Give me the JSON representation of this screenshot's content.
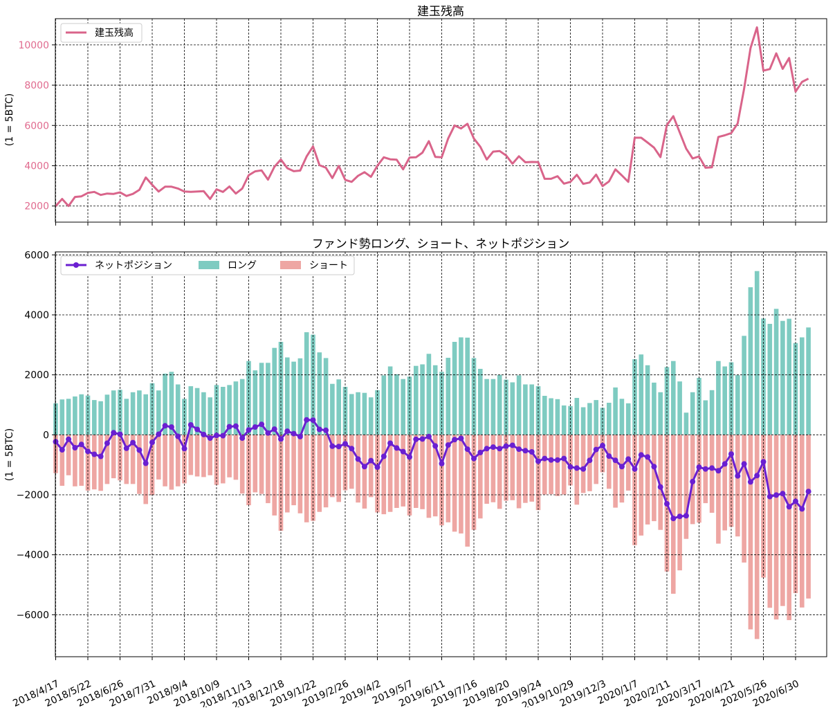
{
  "colors": {
    "oi_line": "#d9648a",
    "oi_tick": "#e06a8e",
    "long_bar": "#7ecbc1",
    "short_bar": "#eea6a3",
    "net_line": "#6a1fd1",
    "grid": "#000000",
    "axis_text": "#000000"
  },
  "x_tick_labels": [
    "2018/4/17",
    "2018/5/22",
    "2018/6/26",
    "2018/7/31",
    "2018/9/4",
    "2018/10/9",
    "2018/11/13",
    "2018/12/18",
    "2019/1/22",
    "2019/2/26",
    "2019/4/2",
    "2019/5/7",
    "2019/6/11",
    "2019/7/16",
    "2019/8/20",
    "2019/9/24",
    "2019/10/29",
    "2019/12/3",
    "2020/1/7",
    "2020/2/11",
    "2020/3/17",
    "2020/4/21",
    "2020/5/26",
    "2020/6/30"
  ],
  "chart_data": [
    {
      "type": "line",
      "title": "建玉残高",
      "ylabel": "(1 = 5BTC)",
      "xlabel": "",
      "ylim": [
        1200,
        11300
      ],
      "yticks": [
        2000,
        4000,
        6000,
        8000,
        10000
      ],
      "grid": true,
      "legend": {
        "position": "top-left",
        "entries": [
          "建玉残高"
        ]
      },
      "series": [
        {
          "name": "建玉残高",
          "values": [
            2000,
            2350,
            2000,
            2450,
            2480,
            2650,
            2700,
            2550,
            2620,
            2600,
            2680,
            2500,
            2600,
            2800,
            3420,
            3050,
            2720,
            2960,
            2960,
            2870,
            2720,
            2700,
            2720,
            2740,
            2350,
            2830,
            2700,
            2970,
            2620,
            2870,
            3530,
            3720,
            3770,
            3310,
            3950,
            4310,
            3880,
            3730,
            3760,
            4460,
            4960,
            4030,
            3900,
            3390,
            3990,
            3300,
            3200,
            3500,
            3680,
            3450,
            4000,
            4420,
            4320,
            4300,
            3820,
            4410,
            4420,
            4650,
            5220,
            4440,
            4420,
            5350,
            6000,
            5850,
            6080,
            5350,
            4940,
            4310,
            4700,
            4730,
            4510,
            4100,
            4470,
            4170,
            4190,
            4180,
            3350,
            3350,
            3480,
            3110,
            3200,
            3550,
            3100,
            3170,
            3560,
            2990,
            3220,
            3820,
            3520,
            3200,
            5390,
            5390,
            5150,
            4900,
            4430,
            6020,
            6460,
            5650,
            4850,
            4360,
            4460,
            3900,
            3920,
            5430,
            5510,
            5620,
            6100,
            7820,
            9840,
            10870,
            8720,
            8800,
            9580,
            8810,
            9350,
            7680,
            8160,
            8320
          ]
        }
      ]
    },
    {
      "type": "bar",
      "title": "ファンド勢ロング、ショート、ネットポジション",
      "ylabel": "(1 = 5BTC)",
      "xlabel": "",
      "ylim": [
        -7400,
        6100
      ],
      "yticks": [
        -6000,
        -4000,
        -2000,
        0,
        2000,
        4000,
        6000
      ],
      "grid": true,
      "legend": {
        "position": "top-left",
        "entries": [
          "ネットポジション",
          "ロング",
          "ショート"
        ]
      },
      "series": [
        {
          "name": "ロング",
          "values": [
            1050,
            1180,
            1200,
            1280,
            1350,
            1310,
            1160,
            1120,
            1340,
            1480,
            1500,
            1200,
            1420,
            1480,
            1350,
            1720,
            1480,
            2040,
            2100,
            1680,
            1200,
            1620,
            1560,
            1420,
            1250,
            1660,
            1600,
            1660,
            1780,
            1860,
            2460,
            2150,
            2400,
            2400,
            2900,
            3100,
            2580,
            2440,
            2550,
            3420,
            3340,
            2750,
            2560,
            1700,
            1850,
            1600,
            1360,
            1420,
            1400,
            1250,
            1490,
            1980,
            2280,
            2020,
            1860,
            1940,
            2300,
            2350,
            2700,
            2320,
            2100,
            2570,
            3100,
            3250,
            3240,
            2560,
            2200,
            1860,
            1860,
            2000,
            1840,
            1750,
            1980,
            1680,
            1680,
            1620,
            1300,
            1220,
            1190,
            980,
            960,
            1230,
            920,
            1060,
            1160,
            900,
            1070,
            1580,
            1200,
            1050,
            2520,
            2680,
            2320,
            1740,
            1420,
            2260,
            2460,
            1780,
            740,
            1420,
            1900,
            1150,
            1490,
            2460,
            2280,
            2420,
            1990,
            3300,
            4920,
            5460,
            3880,
            3700,
            4200,
            3800,
            3870,
            3060,
            3250,
            3580
          ]
        },
        {
          "name": "ショート",
          "values": [
            -1280,
            -1700,
            -1350,
            -1720,
            -1700,
            -1860,
            -1820,
            -1870,
            -1640,
            -1450,
            -1520,
            -1640,
            -1640,
            -1970,
            -2310,
            -2010,
            -1490,
            -1720,
            -1830,
            -1720,
            -1620,
            -1340,
            -1390,
            -1410,
            -1350,
            -1670,
            -1620,
            -1420,
            -1500,
            -1960,
            -2350,
            -1920,
            -1970,
            -2280,
            -2690,
            -3200,
            -2590,
            -2350,
            -2620,
            -2920,
            -2870,
            -2570,
            -2420,
            -2080,
            -2240,
            -1850,
            -1800,
            -2260,
            -2460,
            -2080,
            -2590,
            -2650,
            -2570,
            -2440,
            -2390,
            -2690,
            -2440,
            -2480,
            -2770,
            -2720,
            -3020,
            -2920,
            -3230,
            -3290,
            -3730,
            -3170,
            -2790,
            -2300,
            -2250,
            -2470,
            -2200,
            -2180,
            -2450,
            -2270,
            -2230,
            -2510,
            -1990,
            -1980,
            -2040,
            -1990,
            -1690,
            -2330,
            -1940,
            -1880,
            -1640,
            -1250,
            -1800,
            -2430,
            -2260,
            -1860,
            -3680,
            -3360,
            -2990,
            -2880,
            -3170,
            -4560,
            -5300,
            -4520,
            -3470,
            -2980,
            -2930,
            -2280,
            -2600,
            -3630,
            -3190,
            -3070,
            -3390,
            -4260,
            -6490,
            -6810,
            -4760,
            -5770,
            -6160,
            -5710,
            -6180,
            -5280,
            -5760,
            -5460
          ]
        },
        {
          "name": "ネットポジション",
          "type": "line",
          "values": [
            -230,
            -500,
            -150,
            -430,
            -320,
            -550,
            -650,
            -720,
            -280,
            70,
            20,
            -450,
            -260,
            -510,
            -950,
            -250,
            20,
            300,
            260,
            -50,
            -460,
            330,
            180,
            10,
            -110,
            -20,
            -30,
            270,
            290,
            -110,
            160,
            260,
            350,
            60,
            190,
            -140,
            120,
            40,
            -60,
            500,
            490,
            180,
            150,
            -380,
            -390,
            -300,
            -460,
            -810,
            -1060,
            -860,
            -1080,
            -720,
            -280,
            -440,
            -560,
            -740,
            -150,
            -140,
            -60,
            -370,
            -960,
            -340,
            -160,
            -120,
            -480,
            -790,
            -590,
            -460,
            -410,
            -460,
            -380,
            -350,
            -480,
            -530,
            -570,
            -880,
            -790,
            -840,
            -840,
            -790,
            -1070,
            -1110,
            -1140,
            -850,
            -490,
            -360,
            -710,
            -850,
            -1060,
            -810,
            -1140,
            -670,
            -740,
            -1060,
            -1740,
            -2300,
            -2790,
            -2720,
            -2700,
            -1560,
            -1080,
            -1140,
            -1110,
            -1200,
            -970,
            -640,
            -1370,
            -970,
            -1570,
            -1360,
            -900,
            -2060,
            -2010,
            -1960,
            -2400,
            -2220,
            -2470,
            -1890
          ]
        }
      ]
    }
  ]
}
